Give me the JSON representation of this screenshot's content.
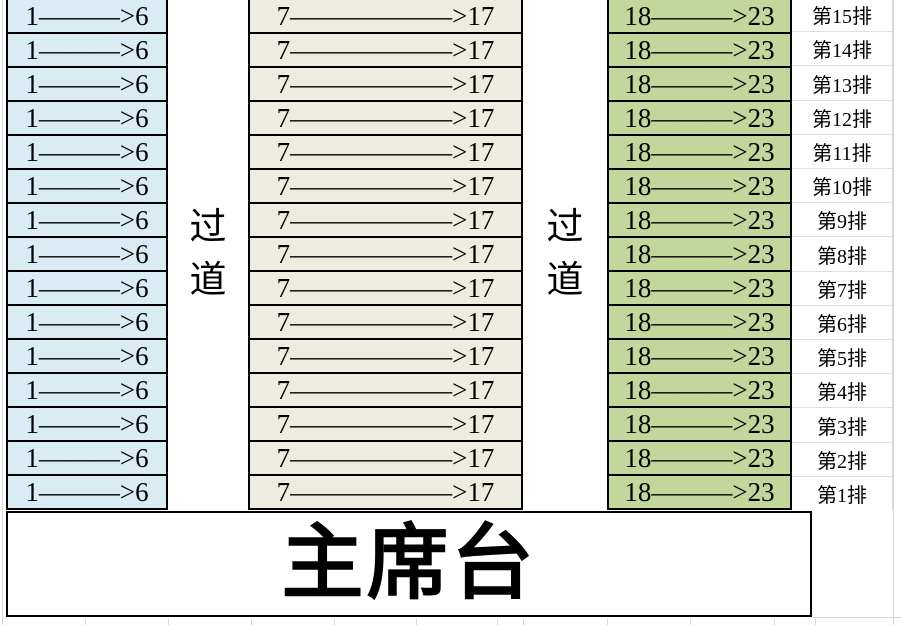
{
  "colors": {
    "left_block": "#d9ebf3",
    "middle_block": "#eeece1",
    "right_block": "#c3d69b",
    "cell_border": "#000000",
    "gridline": "#d6d6d6"
  },
  "seating": {
    "row_count": 15,
    "left_section_label": "1———>6",
    "middle_section_label": "7––––––––––––>17",
    "right_section_label": "18———>23",
    "row_labels": [
      "第15排",
      "第14排",
      "第13排",
      "第12排",
      "第11排",
      "第10排",
      "第9排",
      "第8排",
      "第7排",
      "第6排",
      "第5排",
      "第4排",
      "第3排",
      "第2排",
      "第1排"
    ]
  },
  "aisles": {
    "label": "过道"
  },
  "stage": {
    "label": "主席台"
  }
}
